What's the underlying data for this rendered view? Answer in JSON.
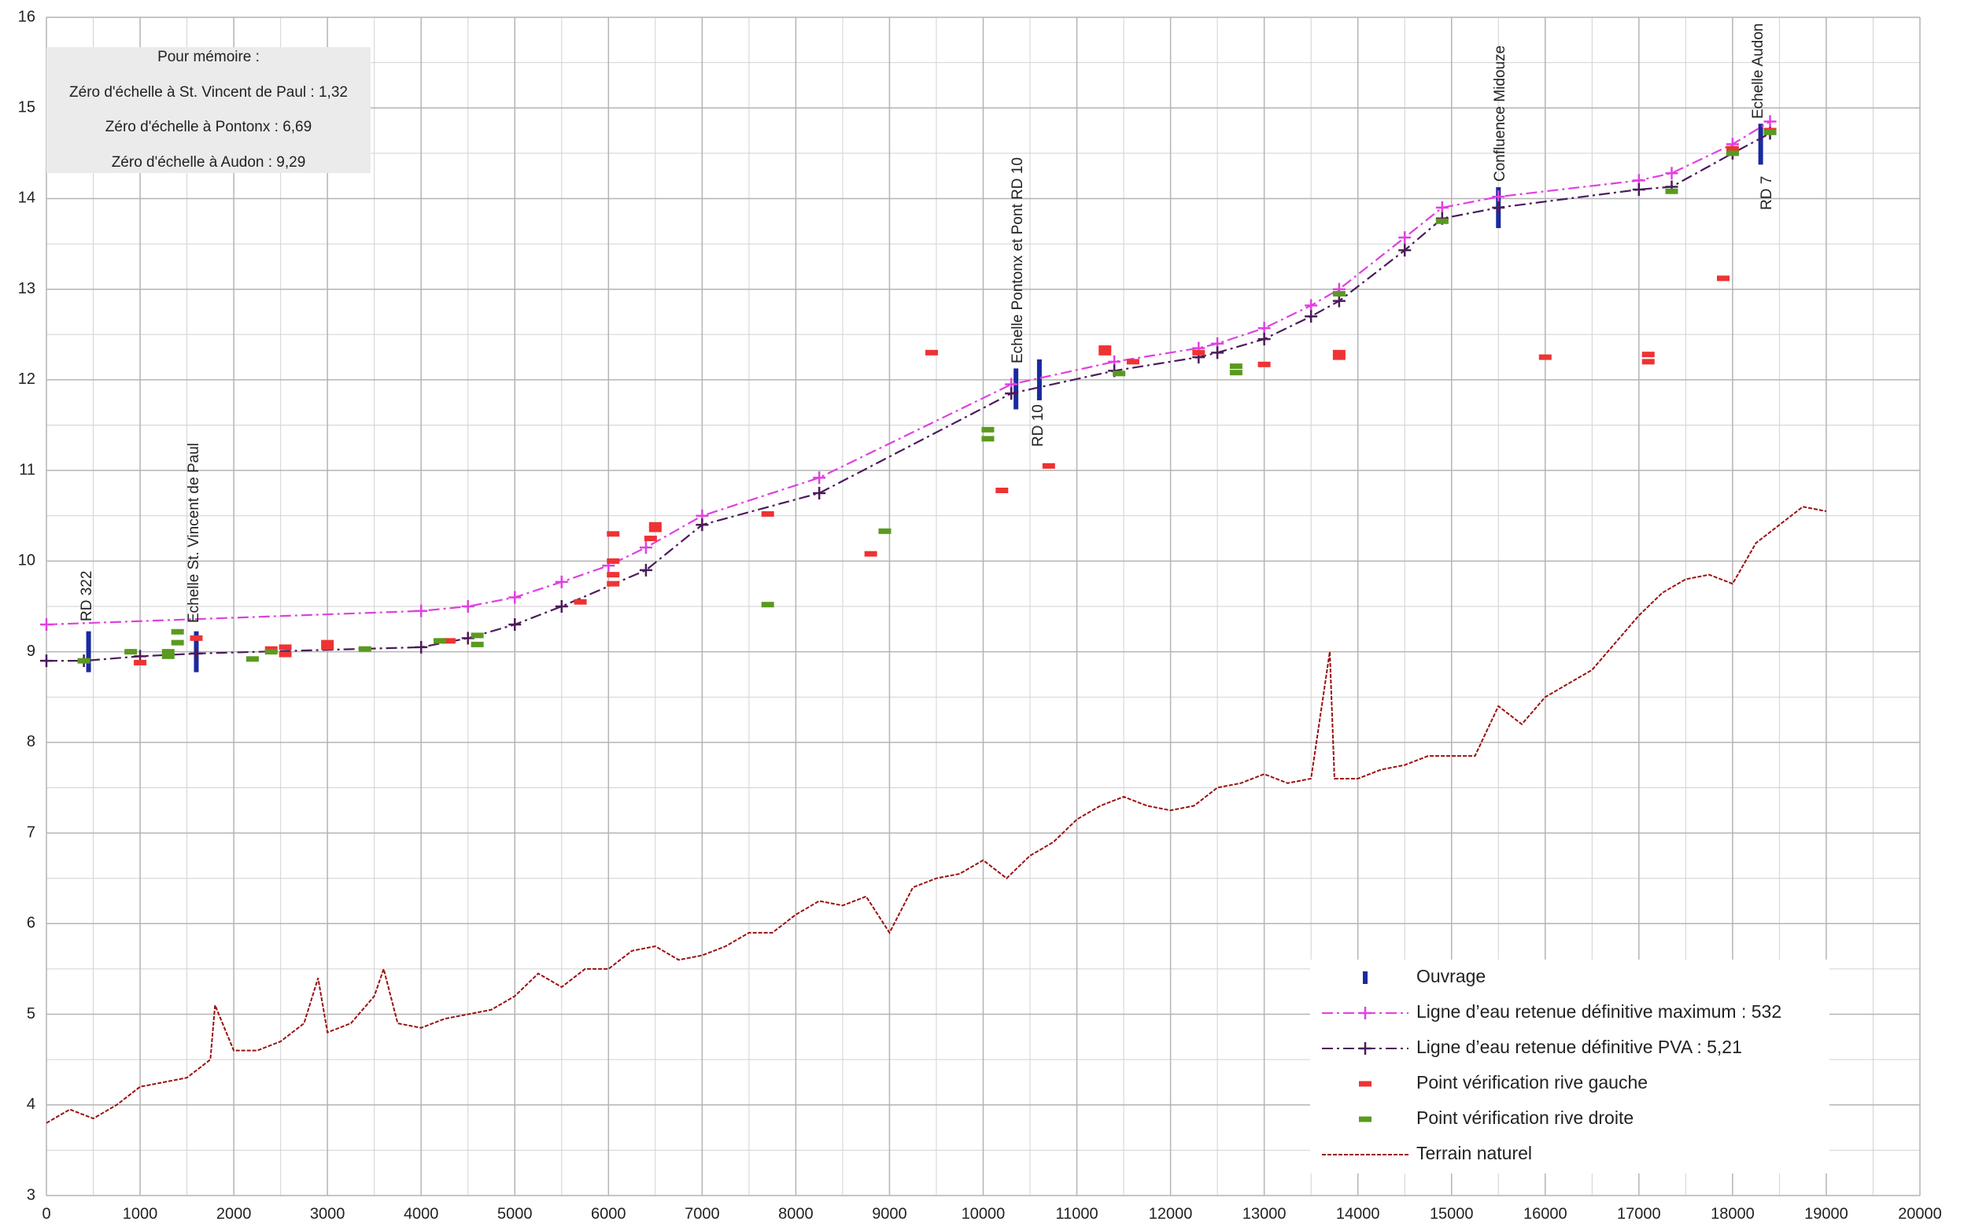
{
  "chart_data": {
    "type": "line",
    "memo": [
      "Pour mémoire :",
      "Zéro d'échelle à St. Vincent de Paul : 1,32",
      "Zéro d'échelle à Pontonx : 6,69",
      "Zéro d'échelle à Audon : 9,29"
    ],
    "annotations": [
      {
        "text": "RD 322",
        "color": "#111111"
      },
      {
        "text": "Echelle St. Vincent de Paul",
        "color": "#e8403c"
      },
      {
        "text": "Echelle Pontonx et Pont RD 10",
        "color": "#e8403c"
      },
      {
        "text": "RD 10",
        "color": "#111111"
      },
      {
        "text": "Confluence Midouze",
        "color": "#111111"
      },
      {
        "text": "Echelle Audon",
        "color": "#e8403c"
      },
      {
        "text": "RD 7",
        "color": "#111111"
      }
    ],
    "xlim": [
      0,
      20000
    ],
    "xticks": [
      0,
      1000,
      2000,
      3000,
      4000,
      5000,
      6000,
      7000,
      8000,
      9000,
      10000,
      11000,
      12000,
      13000,
      14000,
      15000,
      16000,
      17000,
      18000,
      19000,
      20000
    ],
    "ylim": [
      3,
      16
    ],
    "yticks": [
      3,
      4,
      5,
      6,
      7,
      8,
      9,
      10,
      11,
      12,
      13,
      14,
      15,
      16
    ],
    "grid": true,
    "minor_grid": true,
    "legend": "lower right",
    "series": [
      {
        "name": "Ouvrage",
        "color": "#1a2a9e",
        "style": "bar-v",
        "x": [
          450,
          1600,
          10350,
          10600,
          15500,
          18300
        ],
        "values": [
          9.0,
          9.0,
          11.9,
          12.0,
          13.9,
          14.6
        ]
      },
      {
        "name": "Ligne d’eau retenue définitive  maximum : 532",
        "color": "#e040e0",
        "style": "line-cross",
        "x": [
          0,
          4000,
          4500,
          5000,
          5500,
          6000,
          6400,
          7000,
          8250,
          10300,
          11400,
          12300,
          12500,
          13000,
          13500,
          13800,
          14500,
          14900,
          15500,
          17000,
          17350,
          18000,
          18400
        ],
        "values": [
          9.3,
          9.45,
          9.5,
          9.6,
          9.77,
          9.95,
          10.15,
          10.5,
          10.92,
          11.95,
          12.2,
          12.35,
          12.4,
          12.57,
          12.82,
          13.0,
          13.57,
          13.9,
          14.02,
          14.2,
          14.28,
          14.6,
          14.85
        ]
      },
      {
        "name": "Ligne d’eau retenue définitive  PVA : 5,21",
        "color": "#4b1b5a",
        "style": "line-cross",
        "x": [
          0,
          400,
          1000,
          1600,
          4000,
          4500,
          5000,
          5500,
          6400,
          7000,
          8250,
          10300,
          11400,
          12300,
          12500,
          13000,
          13500,
          13800,
          14500,
          14900,
          15500,
          17000,
          17350,
          18000,
          18400
        ],
        "values": [
          8.9,
          8.9,
          8.95,
          8.98,
          9.05,
          9.15,
          9.3,
          9.5,
          9.9,
          10.4,
          10.75,
          11.85,
          12.1,
          12.25,
          12.3,
          12.45,
          12.7,
          12.87,
          13.43,
          13.78,
          13.9,
          14.1,
          14.13,
          14.5,
          14.72
        ]
      },
      {
        "name": "Point vérification rive gauche",
        "color": "#ee3333",
        "style": "dash-h",
        "x": [
          1000,
          1600,
          2400,
          2550,
          2550,
          3000,
          3000,
          4300,
          5700,
          6050,
          6050,
          6050,
          6050,
          6450,
          6500,
          6500,
          7700,
          8800,
          9450,
          10200,
          10700,
          11300,
          11300,
          11600,
          12300,
          13000,
          13800,
          13800,
          16000,
          17100,
          17100,
          17900,
          18000,
          18400
        ],
        "values": [
          8.88,
          9.15,
          9.03,
          9.05,
          8.97,
          9.05,
          9.1,
          9.12,
          9.55,
          10.3,
          10.0,
          9.85,
          9.75,
          10.25,
          10.4,
          10.35,
          10.52,
          10.08,
          12.3,
          10.78,
          11.05,
          12.35,
          12.3,
          12.2,
          12.3,
          12.17,
          12.3,
          12.25,
          12.25,
          12.28,
          12.2,
          13.12,
          14.55,
          14.75
        ]
      },
      {
        "name": "Point vérification rive droite",
        "color": "#5a9a20",
        "style": "dash-h",
        "x": [
          400,
          900,
          1300,
          1300,
          1400,
          1400,
          2200,
          2400,
          3400,
          4200,
          4600,
          4600,
          7700,
          8950,
          10050,
          10050,
          11450,
          12700,
          12700,
          13800,
          14900,
          17350,
          18000,
          18400
        ],
        "values": [
          8.9,
          9.0,
          8.95,
          9.0,
          9.1,
          9.22,
          8.92,
          9.0,
          9.03,
          9.12,
          9.18,
          9.08,
          9.52,
          10.33,
          11.45,
          11.35,
          12.07,
          12.15,
          12.08,
          12.95,
          13.75,
          14.08,
          14.5,
          14.73
        ]
      },
      {
        "name": "Terrain naturel",
        "color": "#9b1010",
        "style": "line",
        "x": [
          0,
          250,
          500,
          750,
          1000,
          1250,
          1500,
          1750,
          1800,
          2000,
          2250,
          2500,
          2750,
          2900,
          3000,
          3250,
          3500,
          3600,
          3750,
          4000,
          4250,
          4500,
          4750,
          5000,
          5250,
          5500,
          5750,
          6000,
          6250,
          6500,
          6750,
          7000,
          7250,
          7500,
          7750,
          8000,
          8250,
          8500,
          8750,
          9000,
          9250,
          9500,
          9750,
          10000,
          10250,
          10500,
          10750,
          11000,
          11250,
          11500,
          11750,
          12000,
          12250,
          12500,
          12750,
          13000,
          13250,
          13500,
          13700,
          13750,
          14000,
          14250,
          14500,
          14750,
          15000,
          15250,
          15500,
          15750,
          16000,
          16250,
          16500,
          16750,
          17000,
          17250,
          17500,
          17750,
          18000,
          18250,
          18500,
          18750,
          19000
        ],
        "values": [
          3.8,
          3.95,
          3.85,
          4.0,
          4.2,
          4.25,
          4.3,
          4.5,
          5.1,
          4.6,
          4.6,
          4.7,
          4.9,
          5.4,
          4.8,
          4.9,
          5.2,
          5.5,
          4.9,
          4.85,
          4.95,
          5.0,
          5.05,
          5.2,
          5.45,
          5.3,
          5.5,
          5.5,
          5.7,
          5.75,
          5.6,
          5.65,
          5.75,
          5.9,
          5.9,
          6.1,
          6.25,
          6.2,
          6.3,
          5.9,
          6.4,
          6.5,
          6.55,
          6.7,
          6.5,
          6.75,
          6.9,
          7.15,
          7.3,
          7.4,
          7.3,
          7.25,
          7.3,
          7.5,
          7.55,
          7.65,
          7.55,
          7.6,
          9.0,
          7.6,
          7.6,
          7.7,
          7.75,
          7.85,
          7.85,
          7.85,
          8.4,
          8.2,
          8.5,
          8.65,
          8.8,
          9.1,
          9.4,
          9.65,
          9.8,
          9.85,
          9.75,
          10.2,
          10.4,
          10.6,
          10.55
        ]
      }
    ]
  }
}
